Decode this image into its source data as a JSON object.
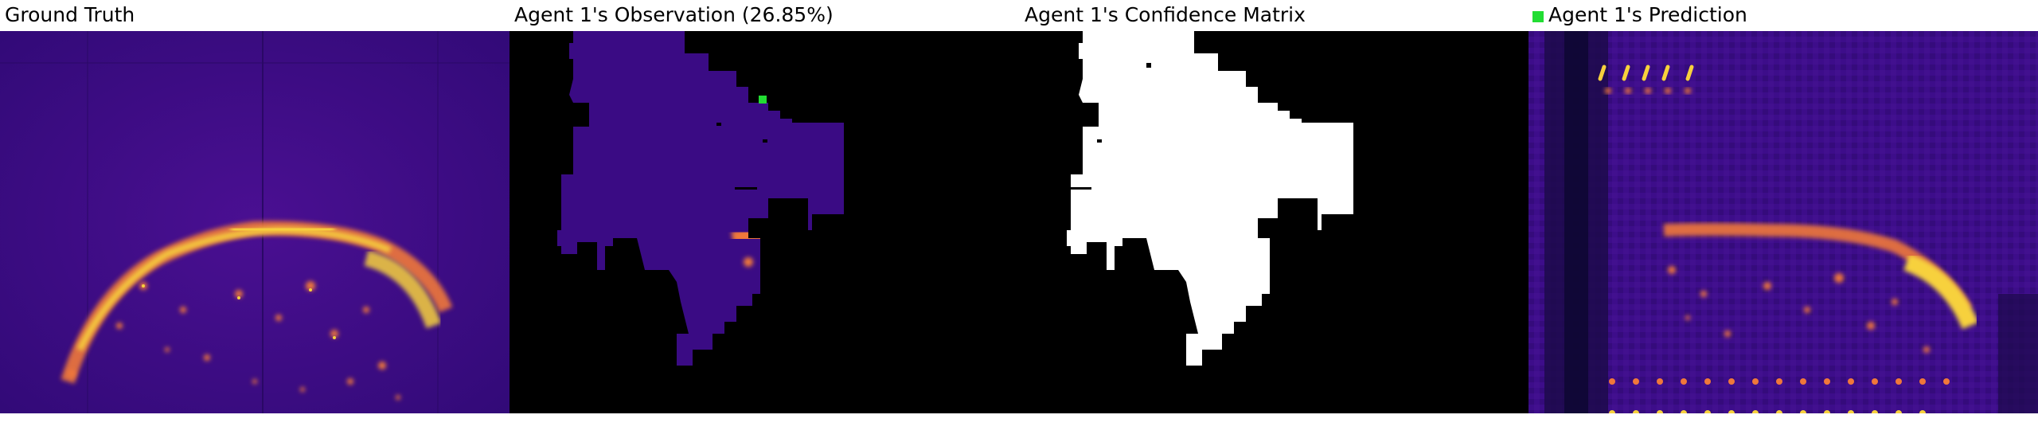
{
  "panels": [
    {
      "title": "Ground Truth"
    },
    {
      "title": "Agent 1's Observation (26.85%)"
    },
    {
      "title": "Agent 1's Confidence Matrix"
    },
    {
      "title": "Agent 1's Prediction"
    }
  ],
  "colors": {
    "thermal_background": "#3a0b84",
    "hot_yellow": "#f7d13d",
    "hot_orange": "#f0783a",
    "hot_magenta": "#c73a8a",
    "masked": "#000000",
    "confidence_high": "#ffffff",
    "agent_marker": "#22dd33"
  }
}
